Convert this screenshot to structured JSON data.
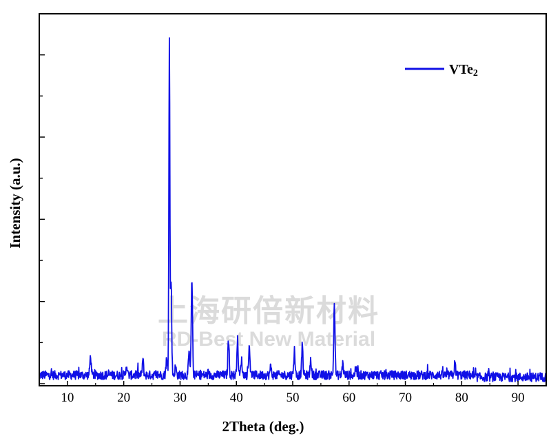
{
  "chart_data": {
    "type": "line",
    "xlabel": "2Theta (deg.)",
    "ylabel": "Intensity (a.u.)",
    "xlim": [
      5,
      95
    ],
    "ylim": [
      0,
      100
    ],
    "x_ticks": [
      10,
      20,
      30,
      40,
      50,
      60,
      70,
      80,
      90
    ],
    "grid": false,
    "legend_position": "top-right",
    "series": [
      {
        "name": "VTe2",
        "color": "#1010e6",
        "baseline": 2.5,
        "peaks": [
          {
            "x": 14.1,
            "y": 8
          },
          {
            "x": 20.5,
            "y": 5.5
          },
          {
            "x": 23.4,
            "y": 7
          },
          {
            "x": 27.6,
            "y": 7
          },
          {
            "x": 28.1,
            "y": 100
          },
          {
            "x": 28.4,
            "y": 30
          },
          {
            "x": 29.2,
            "y": 5
          },
          {
            "x": 31.6,
            "y": 9
          },
          {
            "x": 32.1,
            "y": 30
          },
          {
            "x": 38.6,
            "y": 13
          },
          {
            "x": 40.2,
            "y": 13
          },
          {
            "x": 40.9,
            "y": 7
          },
          {
            "x": 42.3,
            "y": 11
          },
          {
            "x": 46.1,
            "y": 5
          },
          {
            "x": 50.3,
            "y": 10
          },
          {
            "x": 51.7,
            "y": 11
          },
          {
            "x": 53.2,
            "y": 7
          },
          {
            "x": 57.4,
            "y": 23.5
          },
          {
            "x": 58.9,
            "y": 6
          },
          {
            "x": 61.2,
            "y": 5
          },
          {
            "x": 78.8,
            "y": 6
          }
        ]
      }
    ],
    "watermark": {
      "line1": "上海研倍新材料",
      "line2": "RD-Best New Material"
    }
  }
}
